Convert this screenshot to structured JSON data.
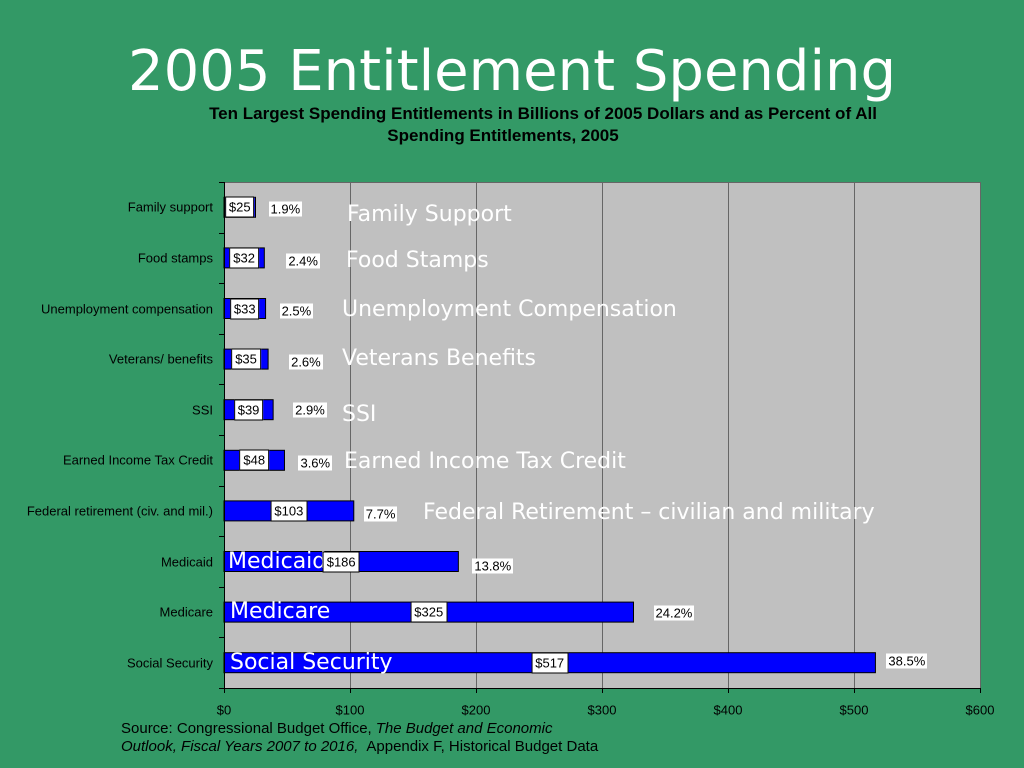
{
  "slide": {
    "background_color": "#339966"
  },
  "chart_data": {
    "type": "bar",
    "orientation": "horizontal",
    "title": "2005 Entitlement Spending",
    "subtitle_lines": [
      "Ten Largest Spending Entitlements in Billions of 2005 Dollars and as Percent of All",
      "Spending Entitlements, 2005"
    ],
    "categories": [
      "Family support",
      "Food stamps",
      "Unemployment compensation",
      "Veterans/ benefits",
      "SSI",
      "Earned Income Tax Credit",
      "Federal retirement (civ. and mil.)",
      "Medicaid",
      "Medicare",
      "Social Security"
    ],
    "values": [
      25,
      32,
      33,
      35,
      39,
      48,
      103,
      186,
      325,
      517
    ],
    "value_labels": [
      "$25",
      "$32",
      "$33",
      "$35",
      "$39",
      "$48",
      "$103",
      "$186",
      "$325",
      "$517"
    ],
    "percent_labels": [
      "1.9%",
      "2.4%",
      "2.5%",
      "2.6%",
      "2.9%",
      "3.6%",
      "7.7%",
      "13.8%",
      "24.2%",
      "38.5%"
    ],
    "annotations": [
      "Family Support",
      "Food Stamps",
      "Unemployment Compensation",
      "Veterans Benefits",
      "SSI",
      "Earned Income Tax Credit",
      "Federal Retirement – civilian and military",
      "Medicaid",
      "Medicare",
      "Social Security"
    ],
    "xlim": [
      0,
      600
    ],
    "x_ticks": [
      0,
      100,
      200,
      300,
      400,
      500,
      600
    ],
    "x_tick_labels": [
      "$0",
      "$100",
      "$200",
      "$300",
      "$400",
      "$500",
      "$600"
    ],
    "grid": "vertical",
    "colors": {
      "bar": "#0000ff",
      "plot_background": "#c0c0c0",
      "gridline": "#666666",
      "annotation_text": "#ffffff"
    },
    "source": {
      "line1_normal": "Source: Congressional Budget Office,",
      "line1_italic": "The Budget and Economic",
      "line2_italic": "Outlook, Fiscal Years 2007 to 2016,",
      "line2_normal": "Appendix F, Historical Budget Data"
    }
  }
}
